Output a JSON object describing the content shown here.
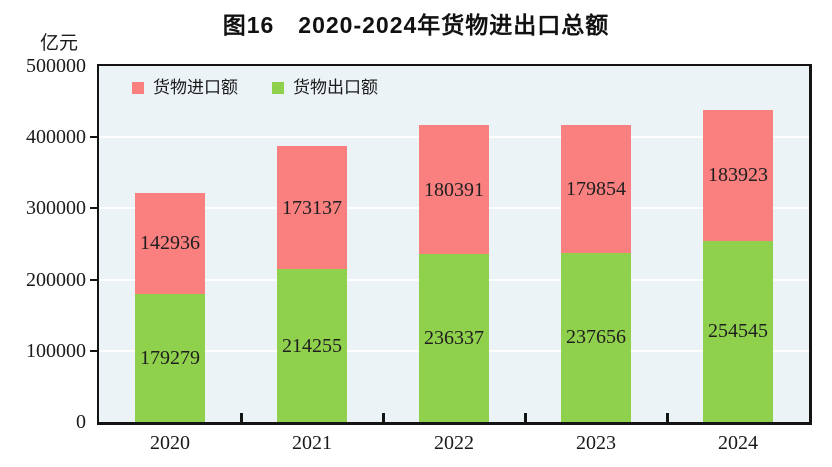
{
  "title": "图16　2020-2024年货物进出口总额",
  "unit_label": "亿元",
  "colors": {
    "import_bar": "#fa7f7f",
    "export_bar": "#8fd04d",
    "plot_background": "#ecf3f7",
    "axis": "#141414",
    "gridline": "#ffffff",
    "text": "#1a1a1a"
  },
  "legend": {
    "position": "top-left-inside",
    "entries": [
      {
        "label": "货物进口额",
        "color": "#fa7f7f"
      },
      {
        "label": "货物出口额",
        "color": "#8fd04d"
      }
    ]
  },
  "chart_data": {
    "type": "bar",
    "stacked": true,
    "title": "图16　2020-2024年货物进出口总额",
    "ylabel": "亿元",
    "xlabel": "",
    "categories": [
      "2020",
      "2021",
      "2022",
      "2023",
      "2024"
    ],
    "series": [
      {
        "name": "货物出口额",
        "color": "#8fd04d",
        "values": [
          179279,
          214255,
          236337,
          237656,
          254545
        ]
      },
      {
        "name": "货物进口额",
        "color": "#fa7f7f",
        "values": [
          142936,
          173137,
          180391,
          179854,
          183923
        ]
      }
    ],
    "ylim": [
      0,
      500000
    ],
    "yticks": [
      0,
      100000,
      200000,
      300000,
      400000,
      500000
    ],
    "grid": true,
    "legend_position": "top-left-inside"
  }
}
